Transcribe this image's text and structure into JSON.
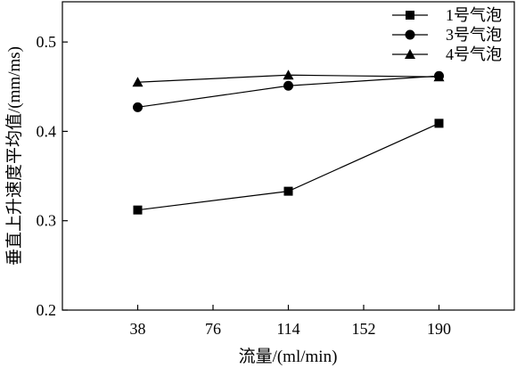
{
  "chart_data": {
    "type": "line",
    "xlabel": "流量/(ml/min)",
    "ylabel": "垂直上升速度平均值/(mm/ms)",
    "x": [
      38,
      114,
      190
    ],
    "xticks": [
      "38",
      "76",
      "114",
      "152",
      "190"
    ],
    "xtick_values": [
      38,
      76,
      114,
      152,
      190
    ],
    "xlim": [
      0,
      228
    ],
    "yticks": [
      "0.2",
      "0.3",
      "0.4",
      "0.5"
    ],
    "ytick_values": [
      0.2,
      0.3,
      0.4,
      0.5
    ],
    "ylim": [
      0.2,
      0.545
    ],
    "legend_position": "top-right",
    "grid": false,
    "series": [
      {
        "name": "1号气泡",
        "marker": "square",
        "values": [
          0.312,
          0.333,
          0.409
        ]
      },
      {
        "name": "3号气泡",
        "marker": "circle",
        "values": [
          0.427,
          0.451,
          0.462
        ]
      },
      {
        "name": "4号气泡",
        "marker": "triangle",
        "values": [
          0.455,
          0.463,
          0.461
        ]
      }
    ],
    "colors": {
      "line": "#000000",
      "background": "#ffffff"
    }
  }
}
